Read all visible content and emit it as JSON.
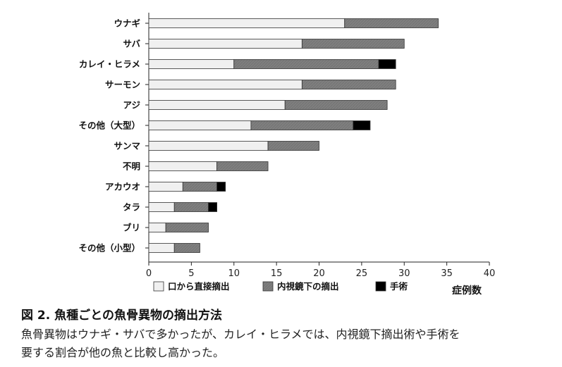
{
  "chart_data": {
    "type": "bar",
    "orientation": "horizontal",
    "stacked": true,
    "categories": [
      "ウナギ",
      "サバ",
      "カレイ・ヒラメ",
      "サーモン",
      "アジ",
      "その他（大型）",
      "サンマ",
      "不明",
      "アカウオ",
      "タラ",
      "ブリ",
      "その他（小型）"
    ],
    "series": [
      {
        "name": "口から直接摘出",
        "color": "#f0f0f0",
        "values": [
          23,
          18,
          10,
          18,
          16,
          12,
          14,
          8,
          4,
          3,
          2,
          3
        ]
      },
      {
        "name": "内視鏡下の摘出",
        "color": "#7f7f7f",
        "values": [
          11,
          12,
          17,
          11,
          12,
          12,
          6,
          6,
          4,
          4,
          5,
          3
        ]
      },
      {
        "name": "手術",
        "color": "#000000",
        "values": [
          0,
          0,
          2,
          0,
          0,
          2,
          0,
          0,
          1,
          1,
          0,
          0
        ]
      }
    ],
    "xlim": [
      0,
      40
    ],
    "xticks": [
      0,
      5,
      10,
      15,
      20,
      25,
      30,
      35,
      40
    ],
    "xlabel": "症例数",
    "ylabel": "",
    "grid": false,
    "legend_position": "bottom"
  },
  "caption": {
    "title": "図 2. 魚種ごとの魚骨異物の摘出方法",
    "line1": "魚骨異物はウナギ・サバで多かったが、カレイ・ヒラメでは、内視鏡下摘出術や手術を",
    "line2": "要する割合が他の魚と比較し高かった。"
  }
}
